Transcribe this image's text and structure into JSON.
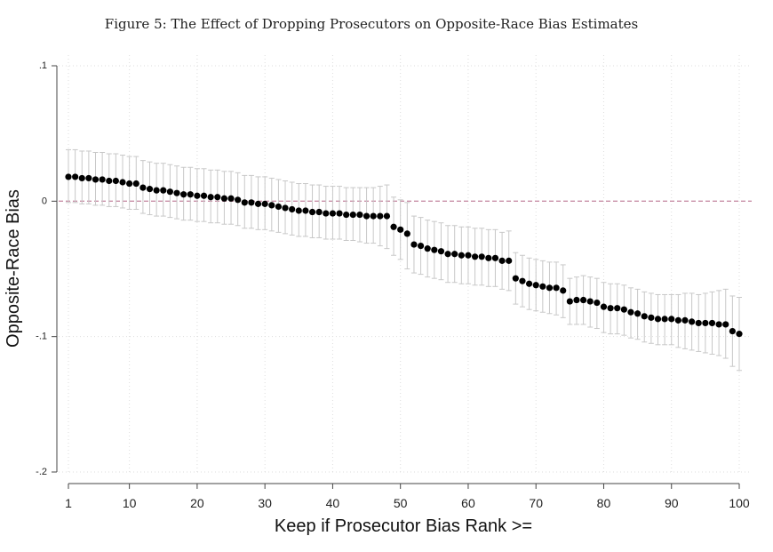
{
  "figure": {
    "title": "Figure 5: The Effect of Dropping Prosecutors on Opposite-Race Bias Estimates"
  },
  "chart_data": {
    "type": "scatter",
    "title": "Figure 5: The Effect of Dropping Prosecutors on Opposite-Race Bias Estimates",
    "xlabel": "Keep if Prosecutor Bias Rank >=",
    "ylabel": "Opposite-Race Bias",
    "xlim": [
      1,
      100
    ],
    "ylim": [
      -0.2,
      0.1
    ],
    "x_ticks": [
      "1",
      "10",
      "20",
      "30",
      "40",
      "50",
      "60",
      "70",
      "80",
      "90",
      "100"
    ],
    "y_ticks": [
      ".1",
      "0",
      "-.1",
      "-.2"
    ],
    "grid": "dotted vertical gridlines at x ticks; dotted horizontal gridlines at y ticks",
    "reference_line": {
      "y": 0,
      "style": "dashed",
      "color": "#c990a8"
    },
    "colors": {
      "points": "#000000",
      "error_bars": "#c8c8c8",
      "axes": "#444444"
    },
    "series": [
      {
        "x": [
          1,
          2,
          3,
          4,
          5,
          6,
          7,
          8,
          9,
          10,
          11,
          12,
          13,
          14,
          15,
          16,
          17,
          18,
          19,
          20,
          21,
          22,
          23,
          24,
          25,
          26,
          27,
          28,
          29,
          30,
          31,
          32,
          33,
          34,
          35,
          36,
          37,
          38,
          39,
          40,
          41,
          42,
          43,
          44,
          45,
          46,
          47,
          48,
          49,
          50,
          51,
          52,
          53,
          54,
          55,
          56,
          57,
          58,
          59,
          60,
          61,
          62,
          63,
          64,
          65,
          66,
          67,
          68,
          69,
          70,
          71,
          72,
          73,
          74,
          75,
          76,
          77,
          78,
          79,
          80,
          81,
          82,
          83,
          84,
          85,
          86,
          87,
          88,
          89,
          90,
          91,
          92,
          93,
          94,
          95,
          96,
          97,
          98,
          99,
          100
        ],
        "estimate": [
          0.018,
          0.018,
          0.017,
          0.017,
          0.016,
          0.016,
          0.015,
          0.015,
          0.014,
          0.013,
          0.013,
          0.01,
          0.009,
          0.008,
          0.008,
          0.007,
          0.006,
          0.005,
          0.005,
          0.004,
          0.004,
          0.003,
          0.003,
          0.002,
          0.002,
          0.001,
          -0.001,
          -0.001,
          -0.002,
          -0.002,
          -0.003,
          -0.004,
          -0.005,
          -0.006,
          -0.007,
          -0.007,
          -0.008,
          -0.008,
          -0.009,
          -0.009,
          -0.009,
          -0.01,
          -0.01,
          -0.01,
          -0.011,
          -0.011,
          -0.011,
          -0.011,
          -0.019,
          -0.021,
          -0.024,
          -0.032,
          -0.033,
          -0.035,
          -0.036,
          -0.037,
          -0.039,
          -0.039,
          -0.04,
          -0.04,
          -0.041,
          -0.041,
          -0.042,
          -0.042,
          -0.044,
          -0.044,
          -0.057,
          -0.059,
          -0.061,
          -0.062,
          -0.063,
          -0.064,
          -0.064,
          -0.066,
          -0.074,
          -0.073,
          -0.073,
          -0.074,
          -0.075,
          -0.078,
          -0.079,
          -0.079,
          -0.08,
          -0.082,
          -0.083,
          -0.085,
          -0.086,
          -0.087,
          -0.087,
          -0.087,
          -0.088,
          -0.088,
          -0.089,
          -0.09,
          -0.09,
          -0.09,
          -0.091,
          -0.091,
          -0.096,
          -0.098
        ],
        "ci_lower": [
          -0.001,
          -0.001,
          -0.002,
          -0.002,
          -0.003,
          -0.003,
          -0.004,
          -0.004,
          -0.005,
          -0.006,
          -0.006,
          -0.009,
          -0.01,
          -0.011,
          -0.011,
          -0.012,
          -0.013,
          -0.014,
          -0.014,
          -0.015,
          -0.015,
          -0.016,
          -0.016,
          -0.017,
          -0.017,
          -0.018,
          -0.02,
          -0.02,
          -0.021,
          -0.021,
          -0.022,
          -0.023,
          -0.024,
          -0.025,
          -0.026,
          -0.026,
          -0.027,
          -0.027,
          -0.028,
          -0.028,
          -0.028,
          -0.029,
          -0.029,
          -0.03,
          -0.031,
          -0.031,
          -0.033,
          -0.035,
          -0.04,
          -0.043,
          -0.05,
          -0.053,
          -0.054,
          -0.056,
          -0.057,
          -0.058,
          -0.06,
          -0.06,
          -0.061,
          -0.061,
          -0.062,
          -0.062,
          -0.063,
          -0.063,
          -0.065,
          -0.066,
          -0.076,
          -0.078,
          -0.08,
          -0.081,
          -0.082,
          -0.083,
          -0.084,
          -0.086,
          -0.091,
          -0.091,
          -0.091,
          -0.093,
          -0.094,
          -0.097,
          -0.098,
          -0.098,
          -0.099,
          -0.101,
          -0.102,
          -0.104,
          -0.105,
          -0.106,
          -0.106,
          -0.106,
          -0.108,
          -0.109,
          -0.11,
          -0.111,
          -0.112,
          -0.113,
          -0.114,
          -0.116,
          -0.122,
          -0.125
        ],
        "ci_upper": [
          0.038,
          0.038,
          0.037,
          0.037,
          0.036,
          0.036,
          0.035,
          0.035,
          0.034,
          0.033,
          0.033,
          0.03,
          0.029,
          0.028,
          0.028,
          0.027,
          0.026,
          0.025,
          0.025,
          0.024,
          0.024,
          0.023,
          0.023,
          0.022,
          0.022,
          0.021,
          0.019,
          0.019,
          0.018,
          0.018,
          0.017,
          0.016,
          0.015,
          0.014,
          0.013,
          0.013,
          0.012,
          0.012,
          0.011,
          0.011,
          0.011,
          0.01,
          0.01,
          0.01,
          0.01,
          0.01,
          0.011,
          0.012,
          0.003,
          0.001,
          -0.001,
          -0.011,
          -0.012,
          -0.014,
          -0.015,
          -0.016,
          -0.018,
          -0.018,
          -0.019,
          -0.019,
          -0.02,
          -0.02,
          -0.021,
          -0.021,
          -0.023,
          -0.022,
          -0.038,
          -0.04,
          -0.042,
          -0.043,
          -0.044,
          -0.045,
          -0.045,
          -0.047,
          -0.057,
          -0.056,
          -0.055,
          -0.056,
          -0.057,
          -0.06,
          -0.061,
          -0.061,
          -0.062,
          -0.064,
          -0.065,
          -0.067,
          -0.068,
          -0.069,
          -0.069,
          -0.069,
          -0.069,
          -0.068,
          -0.068,
          -0.069,
          -0.068,
          -0.067,
          -0.066,
          -0.065,
          -0.07,
          -0.071
        ]
      }
    ]
  }
}
